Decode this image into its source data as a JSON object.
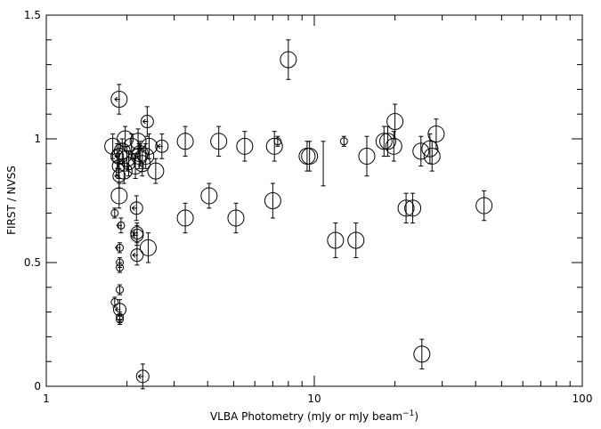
{
  "chart_data": {
    "type": "scatter",
    "title": "",
    "xlabel": "VLBA Photometry (mJy or mJy beam",
    "xlabel_sup": "−1",
    "xlabel_close": ")",
    "ylabel": "FIRST / NVSS",
    "x_scale": "log",
    "xlim": [
      1,
      100
    ],
    "ylim": [
      0,
      1.5
    ],
    "x_ticks": [
      {
        "value": 1,
        "label": "1"
      },
      {
        "value": 10,
        "label": "10"
      },
      {
        "value": 100,
        "label": "100"
      }
    ],
    "y_ticks": [
      {
        "value": 0,
        "label": "0"
      },
      {
        "value": 0.5,
        "label": "0.5"
      },
      {
        "value": 1,
        "label": "1"
      },
      {
        "value": 1.5,
        "label": "1.5"
      }
    ],
    "grid": false,
    "marker_color": "#000000",
    "points": [
      {
        "x": 1.77,
        "y": 0.97,
        "err": 0.05,
        "size": "large"
      },
      {
        "x": 1.8,
        "y": 0.7,
        "err": 0.02,
        "size": "small"
      },
      {
        "x": 1.8,
        "y": 0.34,
        "err": 0.02,
        "size": "small"
      },
      {
        "x": 1.84,
        "y": 0.93,
        "err": 0.05,
        "size": "medium"
      },
      {
        "x": 1.86,
        "y": 0.89,
        "err": 0.05,
        "size": "medium"
      },
      {
        "x": 1.87,
        "y": 1.16,
        "err": 0.06,
        "size": "large",
        "limit": "left"
      },
      {
        "x": 1.87,
        "y": 0.93,
        "err": 0.05,
        "size": "large",
        "limit": "left"
      },
      {
        "x": 1.87,
        "y": 0.85,
        "err": 0.05,
        "size": "medium",
        "limit": "left"
      },
      {
        "x": 1.87,
        "y": 0.77,
        "err": 0.05,
        "size": "large"
      },
      {
        "x": 1.88,
        "y": 0.56,
        "err": 0.02,
        "size": "small",
        "limit": "left"
      },
      {
        "x": 1.88,
        "y": 0.5,
        "err": 0.02,
        "size": "small"
      },
      {
        "x": 1.88,
        "y": 0.48,
        "err": 0.02,
        "size": "small"
      },
      {
        "x": 1.88,
        "y": 0.39,
        "err": 0.02,
        "size": "small"
      },
      {
        "x": 1.88,
        "y": 0.31,
        "err": 0.04,
        "size": "medium",
        "limit": "left"
      },
      {
        "x": 1.88,
        "y": 0.28,
        "err": 0.02,
        "size": "small"
      },
      {
        "x": 1.88,
        "y": 0.27,
        "err": 0.02,
        "size": "small"
      },
      {
        "x": 1.9,
        "y": 0.65,
        "err": 0.03,
        "size": "small",
        "limit": "left"
      },
      {
        "x": 1.92,
        "y": 0.95,
        "err": 0.05,
        "size": "large"
      },
      {
        "x": 1.95,
        "y": 0.87,
        "err": 0.05,
        "size": "large"
      },
      {
        "x": 1.97,
        "y": 1.0,
        "err": 0.05,
        "size": "large"
      },
      {
        "x": 2.0,
        "y": 0.92,
        "err": 0.05,
        "size": "large"
      },
      {
        "x": 2.03,
        "y": 0.9,
        "err": 0.05,
        "size": "medium"
      },
      {
        "x": 2.08,
        "y": 0.97,
        "err": 0.05,
        "size": "large"
      },
      {
        "x": 2.15,
        "y": 0.89,
        "err": 0.05,
        "size": "large"
      },
      {
        "x": 2.17,
        "y": 0.72,
        "err": 0.05,
        "size": "medium",
        "limit": "left"
      },
      {
        "x": 2.18,
        "y": 0.62,
        "err": 0.04,
        "size": "medium",
        "limit": "left"
      },
      {
        "x": 2.18,
        "y": 0.61,
        "err": 0.04,
        "size": "medium",
        "limit": "left"
      },
      {
        "x": 2.18,
        "y": 0.53,
        "err": 0.04,
        "size": "medium",
        "limit": "left"
      },
      {
        "x": 2.2,
        "y": 0.99,
        "err": 0.05,
        "size": "large"
      },
      {
        "x": 2.22,
        "y": 0.93,
        "err": 0.05,
        "size": "large",
        "limit": "left"
      },
      {
        "x": 2.24,
        "y": 0.94,
        "err": 0.05,
        "size": "large"
      },
      {
        "x": 2.28,
        "y": 0.9,
        "err": 0.05,
        "size": "large"
      },
      {
        "x": 2.29,
        "y": 0.04,
        "err": 0.05,
        "size": "medium",
        "limit": "left"
      },
      {
        "x": 2.35,
        "y": 0.93,
        "err": 0.05,
        "size": "large"
      },
      {
        "x": 2.38,
        "y": 1.07,
        "err": 0.06,
        "size": "medium",
        "limit": "left"
      },
      {
        "x": 2.4,
        "y": 0.56,
        "err": 0.06,
        "size": "large"
      },
      {
        "x": 2.42,
        "y": 0.97,
        "err": 0.05,
        "size": "large"
      },
      {
        "x": 2.56,
        "y": 0.87,
        "err": 0.05,
        "size": "large"
      },
      {
        "x": 2.7,
        "y": 0.97,
        "err": 0.05,
        "size": "medium",
        "limit": "left"
      },
      {
        "x": 3.3,
        "y": 0.99,
        "err": 0.06,
        "size": "large"
      },
      {
        "x": 3.3,
        "y": 0.68,
        "err": 0.06,
        "size": "large"
      },
      {
        "x": 4.05,
        "y": 0.77,
        "err": 0.05,
        "size": "large"
      },
      {
        "x": 4.4,
        "y": 0.99,
        "err": 0.06,
        "size": "large"
      },
      {
        "x": 5.1,
        "y": 0.68,
        "err": 0.06,
        "size": "large"
      },
      {
        "x": 5.5,
        "y": 0.97,
        "err": 0.06,
        "size": "large"
      },
      {
        "x": 7.0,
        "y": 0.75,
        "err": 0.07,
        "size": "large"
      },
      {
        "x": 7.1,
        "y": 0.97,
        "err": 0.06,
        "size": "large"
      },
      {
        "x": 7.3,
        "y": 0.99,
        "err": 0.02,
        "size": "small"
      },
      {
        "x": 8.0,
        "y": 1.32,
        "err": 0.08,
        "size": "large"
      },
      {
        "x": 9.4,
        "y": 0.93,
        "err": 0.06,
        "size": "large"
      },
      {
        "x": 9.6,
        "y": 0.93,
        "err": 0.06,
        "size": "large"
      },
      {
        "x": 10.8,
        "y": 0.9,
        "err": 0.09,
        "size": "none"
      },
      {
        "x": 12.0,
        "y": 0.59,
        "err": 0.07,
        "size": "large"
      },
      {
        "x": 12.9,
        "y": 0.99,
        "err": 0.02,
        "size": "small"
      },
      {
        "x": 14.3,
        "y": 0.59,
        "err": 0.07,
        "size": "large"
      },
      {
        "x": 15.7,
        "y": 0.93,
        "err": 0.08,
        "size": "large"
      },
      {
        "x": 18.2,
        "y": 0.99,
        "err": 0.06,
        "size": "large"
      },
      {
        "x": 18.8,
        "y": 0.99,
        "err": 0.06,
        "size": "large"
      },
      {
        "x": 19.8,
        "y": 0.97,
        "err": 0.06,
        "size": "large"
      },
      {
        "x": 20.0,
        "y": 1.07,
        "err": 0.07,
        "size": "large"
      },
      {
        "x": 22.0,
        "y": 0.72,
        "err": 0.06,
        "size": "large"
      },
      {
        "x": 23.3,
        "y": 0.72,
        "err": 0.06,
        "size": "large"
      },
      {
        "x": 25.0,
        "y": 0.95,
        "err": 0.06,
        "size": "large"
      },
      {
        "x": 25.2,
        "y": 0.13,
        "err": 0.06,
        "size": "large"
      },
      {
        "x": 27.0,
        "y": 0.96,
        "err": 0.06,
        "size": "large"
      },
      {
        "x": 27.5,
        "y": 0.93,
        "err": 0.06,
        "size": "large"
      },
      {
        "x": 28.5,
        "y": 1.02,
        "err": 0.06,
        "size": "large"
      },
      {
        "x": 43.0,
        "y": 0.73,
        "err": 0.06,
        "size": "large"
      }
    ]
  }
}
